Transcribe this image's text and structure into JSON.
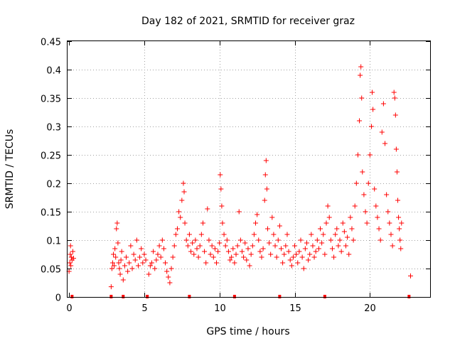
{
  "chart_data": {
    "type": "scatter",
    "title": "Day 182 of 2021, SRMTID for receiver graz",
    "xlabel": "GPS time / hours",
    "ylabel": "SRMTID / TECUs",
    "xlim": [
      -0.1,
      24
    ],
    "ylim": [
      0,
      0.45
    ],
    "x_ticks": [
      0,
      5,
      10,
      15,
      20
    ],
    "x_tick_labels": [
      "0",
      "5",
      "10",
      "15",
      "20"
    ],
    "y_ticks": [
      0,
      0.05,
      0.1,
      0.15,
      0.2,
      0.25,
      0.3,
      0.35,
      0.4,
      0.45
    ],
    "y_tick_labels": [
      "0",
      "0.05",
      "0.1",
      "0.15",
      "0.2",
      "0.25",
      "0.3",
      "0.35",
      "0.4",
      "0.45"
    ],
    "grid": true,
    "marker": "+",
    "color": "#ff0000",
    "baseline_marks_x": [
      0.2,
      2.8,
      3.6,
      5.2,
      8.0,
      11.0,
      14.0,
      17.0,
      22.6
    ],
    "series": [
      {
        "name": "SRMTID",
        "points": [
          [
            0.0,
            0.045
          ],
          [
            0.05,
            0.06
          ],
          [
            0.08,
            0.075
          ],
          [
            0.1,
            0.09
          ],
          [
            0.12,
            0.055
          ],
          [
            0.15,
            0.07
          ],
          [
            0.2,
            0.065
          ],
          [
            0.25,
            0.08
          ],
          [
            0.3,
            0.068
          ],
          [
            2.8,
            0.018
          ],
          [
            2.85,
            0.05
          ],
          [
            2.9,
            0.06
          ],
          [
            2.95,
            0.075
          ],
          [
            3.0,
            0.055
          ],
          [
            3.05,
            0.085
          ],
          [
            3.1,
            0.07
          ],
          [
            3.15,
            0.12
          ],
          [
            3.2,
            0.13
          ],
          [
            3.25,
            0.095
          ],
          [
            3.3,
            0.06
          ],
          [
            3.35,
            0.05
          ],
          [
            3.4,
            0.04
          ],
          [
            3.45,
            0.065
          ],
          [
            3.5,
            0.08
          ],
          [
            3.6,
            0.03
          ],
          [
            3.7,
            0.055
          ],
          [
            3.8,
            0.07
          ],
          [
            3.9,
            0.045
          ],
          [
            4.0,
            0.06
          ],
          [
            4.1,
            0.09
          ],
          [
            4.2,
            0.05
          ],
          [
            4.3,
            0.075
          ],
          [
            4.4,
            0.065
          ],
          [
            4.5,
            0.1
          ],
          [
            4.6,
            0.055
          ],
          [
            4.7,
            0.07
          ],
          [
            4.8,
            0.085
          ],
          [
            4.9,
            0.06
          ],
          [
            5.0,
            0.075
          ],
          [
            5.1,
            0.065
          ],
          [
            5.3,
            0.04
          ],
          [
            5.4,
            0.055
          ],
          [
            5.5,
            0.06
          ],
          [
            5.6,
            0.08
          ],
          [
            5.7,
            0.05
          ],
          [
            5.8,
            0.065
          ],
          [
            5.9,
            0.075
          ],
          [
            6.0,
            0.09
          ],
          [
            6.1,
            0.07
          ],
          [
            6.2,
            0.1
          ],
          [
            6.3,
            0.085
          ],
          [
            6.4,
            0.06
          ],
          [
            6.5,
            0.045
          ],
          [
            6.6,
            0.035
          ],
          [
            6.7,
            0.025
          ],
          [
            6.8,
            0.05
          ],
          [
            6.9,
            0.07
          ],
          [
            7.0,
            0.09
          ],
          [
            7.1,
            0.11
          ],
          [
            7.2,
            0.12
          ],
          [
            7.3,
            0.15
          ],
          [
            7.4,
            0.14
          ],
          [
            7.5,
            0.17
          ],
          [
            7.6,
            0.2
          ],
          [
            7.65,
            0.185
          ],
          [
            7.7,
            0.13
          ],
          [
            7.8,
            0.1
          ],
          [
            7.9,
            0.09
          ],
          [
            8.0,
            0.11
          ],
          [
            8.1,
            0.08
          ],
          [
            8.2,
            0.095
          ],
          [
            8.3,
            0.075
          ],
          [
            8.4,
            0.1
          ],
          [
            8.5,
            0.085
          ],
          [
            8.6,
            0.07
          ],
          [
            8.7,
            0.09
          ],
          [
            8.8,
            0.11
          ],
          [
            8.9,
            0.13
          ],
          [
            9.0,
            0.08
          ],
          [
            9.1,
            0.06
          ],
          [
            9.2,
            0.155
          ],
          [
            9.3,
            0.1
          ],
          [
            9.4,
            0.075
          ],
          [
            9.5,
            0.09
          ],
          [
            9.6,
            0.07
          ],
          [
            9.7,
            0.085
          ],
          [
            9.8,
            0.06
          ],
          [
            9.9,
            0.08
          ],
          [
            10.0,
            0.095
          ],
          [
            10.05,
            0.215
          ],
          [
            10.1,
            0.19
          ],
          [
            10.15,
            0.16
          ],
          [
            10.2,
            0.13
          ],
          [
            10.3,
            0.11
          ],
          [
            10.4,
            0.09
          ],
          [
            10.5,
            0.1
          ],
          [
            10.6,
            0.08
          ],
          [
            10.7,
            0.065
          ],
          [
            10.8,
            0.07
          ],
          [
            10.9,
            0.085
          ],
          [
            11.0,
            0.06
          ],
          [
            11.1,
            0.075
          ],
          [
            11.2,
            0.09
          ],
          [
            11.3,
            0.15
          ],
          [
            11.4,
            0.1
          ],
          [
            11.5,
            0.08
          ],
          [
            11.6,
            0.07
          ],
          [
            11.7,
            0.095
          ],
          [
            11.8,
            0.065
          ],
          [
            11.9,
            0.085
          ],
          [
            12.0,
            0.055
          ],
          [
            12.1,
            0.075
          ],
          [
            12.2,
            0.09
          ],
          [
            12.3,
            0.11
          ],
          [
            12.4,
            0.13
          ],
          [
            12.5,
            0.145
          ],
          [
            12.6,
            0.1
          ],
          [
            12.7,
            0.08
          ],
          [
            12.8,
            0.07
          ],
          [
            12.9,
            0.085
          ],
          [
            13.0,
            0.17
          ],
          [
            13.05,
            0.215
          ],
          [
            13.1,
            0.24
          ],
          [
            13.15,
            0.19
          ],
          [
            13.2,
            0.12
          ],
          [
            13.3,
            0.095
          ],
          [
            13.4,
            0.075
          ],
          [
            13.5,
            0.14
          ],
          [
            13.6,
            0.11
          ],
          [
            13.7,
            0.09
          ],
          [
            13.8,
            0.07
          ],
          [
            13.9,
            0.1
          ],
          [
            14.0,
            0.125
          ],
          [
            14.1,
            0.085
          ],
          [
            14.2,
            0.06
          ],
          [
            14.3,
            0.075
          ],
          [
            14.4,
            0.09
          ],
          [
            14.5,
            0.11
          ],
          [
            14.6,
            0.08
          ],
          [
            14.7,
            0.065
          ],
          [
            14.8,
            0.055
          ],
          [
            14.9,
            0.07
          ],
          [
            15.0,
            0.09
          ],
          [
            15.1,
            0.075
          ],
          [
            15.2,
            0.06
          ],
          [
            15.3,
            0.08
          ],
          [
            15.4,
            0.1
          ],
          [
            15.5,
            0.07
          ],
          [
            15.6,
            0.05
          ],
          [
            15.7,
            0.085
          ],
          [
            15.8,
            0.095
          ],
          [
            15.9,
            0.065
          ],
          [
            16.0,
            0.075
          ],
          [
            16.1,
            0.11
          ],
          [
            16.2,
            0.09
          ],
          [
            16.3,
            0.07
          ],
          [
            16.4,
            0.08
          ],
          [
            16.5,
            0.1
          ],
          [
            16.6,
            0.085
          ],
          [
            16.7,
            0.12
          ],
          [
            16.8,
            0.095
          ],
          [
            16.9,
            0.11
          ],
          [
            17.0,
            0.075
          ],
          [
            17.1,
            0.13
          ],
          [
            17.2,
            0.16
          ],
          [
            17.3,
            0.14
          ],
          [
            17.4,
            0.1
          ],
          [
            17.5,
            0.085
          ],
          [
            17.6,
            0.07
          ],
          [
            17.7,
            0.11
          ],
          [
            17.8,
            0.12
          ],
          [
            17.9,
            0.09
          ],
          [
            18.0,
            0.1
          ],
          [
            18.1,
            0.08
          ],
          [
            18.2,
            0.13
          ],
          [
            18.3,
            0.115
          ],
          [
            18.4,
            0.09
          ],
          [
            18.5,
            0.105
          ],
          [
            18.6,
            0.075
          ],
          [
            18.7,
            0.14
          ],
          [
            18.8,
            0.12
          ],
          [
            18.9,
            0.1
          ],
          [
            19.0,
            0.16
          ],
          [
            19.1,
            0.2
          ],
          [
            19.2,
            0.25
          ],
          [
            19.3,
            0.31
          ],
          [
            19.35,
            0.39
          ],
          [
            19.4,
            0.405
          ],
          [
            19.45,
            0.35
          ],
          [
            19.5,
            0.22
          ],
          [
            19.6,
            0.18
          ],
          [
            19.7,
            0.15
          ],
          [
            19.8,
            0.13
          ],
          [
            19.9,
            0.2
          ],
          [
            20.0,
            0.25
          ],
          [
            20.1,
            0.3
          ],
          [
            20.15,
            0.36
          ],
          [
            20.2,
            0.33
          ],
          [
            20.3,
            0.19
          ],
          [
            20.4,
            0.16
          ],
          [
            20.5,
            0.14
          ],
          [
            20.6,
            0.12
          ],
          [
            20.7,
            0.1
          ],
          [
            20.8,
            0.29
          ],
          [
            20.9,
            0.34
          ],
          [
            21.0,
            0.27
          ],
          [
            21.1,
            0.18
          ],
          [
            21.2,
            0.15
          ],
          [
            21.3,
            0.13
          ],
          [
            21.4,
            0.11
          ],
          [
            21.5,
            0.09
          ],
          [
            21.6,
            0.36
          ],
          [
            21.65,
            0.35
          ],
          [
            21.7,
            0.32
          ],
          [
            21.75,
            0.26
          ],
          [
            21.8,
            0.22
          ],
          [
            21.85,
            0.17
          ],
          [
            21.9,
            0.14
          ],
          [
            21.95,
            0.12
          ],
          [
            22.0,
            0.1
          ],
          [
            22.05,
            0.085
          ],
          [
            22.1,
            0.13
          ],
          [
            22.7,
            0.037
          ]
        ]
      }
    ]
  }
}
